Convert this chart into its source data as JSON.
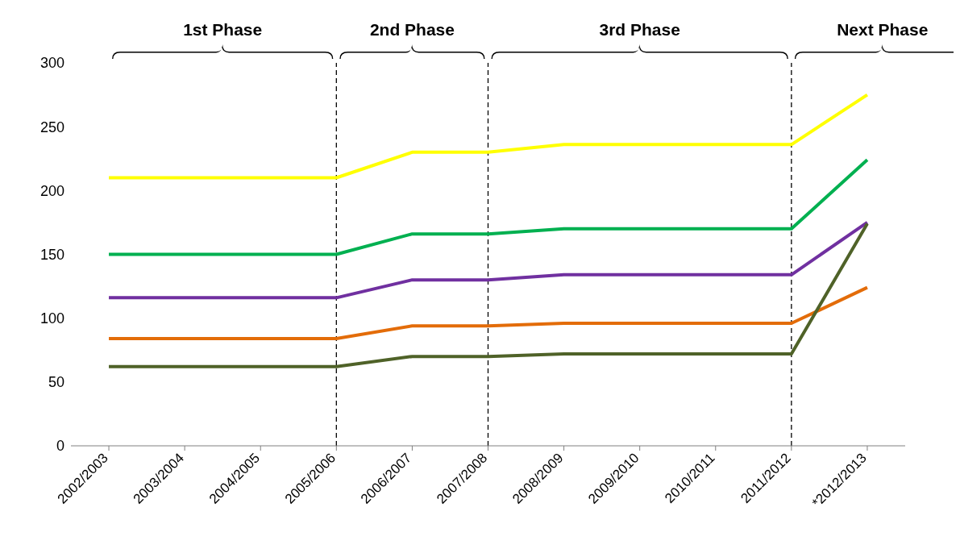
{
  "chart_data": {
    "type": "line",
    "categories": [
      "2002/2003",
      "2003/2004",
      "2004/2005",
      "2005/2006",
      "2006/2007",
      "2007/2008",
      "2008/2009",
      "2009/2010",
      "2010/2011",
      "2011/2012",
      "*2012/2013"
    ],
    "series": [
      {
        "color": "#ffff00",
        "values": [
          210,
          210,
          210,
          210,
          230,
          230,
          236,
          236,
          236,
          236,
          275
        ]
      },
      {
        "color": "#00b050",
        "values": [
          150,
          150,
          150,
          150,
          166,
          166,
          170,
          170,
          170,
          170,
          224
        ]
      },
      {
        "color": "#7030a0",
        "values": [
          116,
          116,
          116,
          116,
          130,
          130,
          134,
          134,
          134,
          134,
          175
        ]
      },
      {
        "color": "#e36c09",
        "values": [
          84,
          84,
          84,
          84,
          94,
          94,
          96,
          96,
          96,
          96,
          124
        ]
      },
      {
        "color": "#4f6228",
        "values": [
          62,
          62,
          62,
          62,
          70,
          70,
          72,
          72,
          72,
          72,
          174
        ]
      }
    ],
    "ylim": [
      0,
      300
    ],
    "yticks": [
      0,
      50,
      100,
      150,
      200,
      250,
      300
    ],
    "grid": false,
    "legend": false,
    "marker": "none",
    "line_style": "solid",
    "ref_lines": [
      {
        "axis": "x",
        "value": "2005/2006",
        "color": "#000000",
        "line_style": "dashed"
      },
      {
        "axis": "x",
        "value": "2007/2008",
        "color": "#000000",
        "line_style": "dashed"
      },
      {
        "axis": "x",
        "value": "2011/2012",
        "color": "#000000",
        "line_style": "dashed"
      }
    ],
    "annotations": [
      "1st Phase",
      "2nd Phase",
      "3rd Phase",
      "Next Phase"
    ]
  }
}
